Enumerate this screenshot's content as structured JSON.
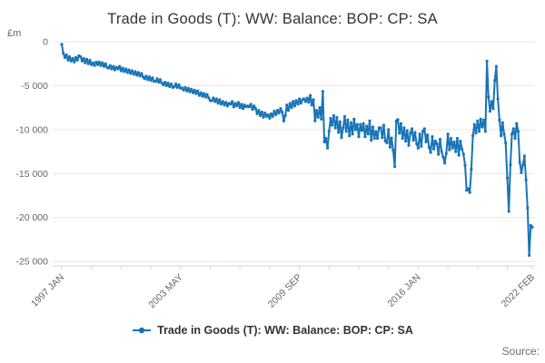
{
  "chart": {
    "title": "Trade in Goods (T): WW: Balance: BOP: CP: SA",
    "unit_label": "£m",
    "source_label": "Source:",
    "legend": {
      "series_label": "Trade in Goods (T): WW: Balance: BOP: CP: SA"
    }
  },
  "chart_data": {
    "type": "line",
    "title": "Trade in Goods (T): WW: Balance: BOP: CP: SA",
    "xlabel": "",
    "ylabel": "£m",
    "frequency": "monthly",
    "x_start_label": "1997 JAN",
    "x_end_label": "2022 FEB",
    "ylim": [
      -25500,
      0
    ],
    "grid": true,
    "legend_position": "bottom",
    "y_ticks": [
      {
        "value": 0,
        "label": "0"
      },
      {
        "value": -5000,
        "label": "-5 000"
      },
      {
        "value": -10000,
        "label": "-10 000"
      },
      {
        "value": -15000,
        "label": "-15 000"
      },
      {
        "value": -20000,
        "label": "-20 000"
      },
      {
        "value": -25000,
        "label": "-25 000"
      }
    ],
    "x_minor_tick_indices": [
      0,
      19,
      38,
      57,
      76,
      95,
      114,
      133,
      152,
      171,
      190,
      209,
      228,
      247,
      266,
      285,
      301
    ],
    "x_tick_labels": [
      {
        "index": 0,
        "label": "1997 JAN"
      },
      {
        "index": 76,
        "label": "2003 MAY"
      },
      {
        "index": 152,
        "label": "2009 SEP"
      },
      {
        "index": 228,
        "label": "2016 JAN"
      },
      {
        "index": 301,
        "label": "2022 FEB"
      }
    ],
    "colors": {
      "line": "#1774b6",
      "grid": "#e6e6e6",
      "axis": "#ccd6eb",
      "tick_label": "#666666",
      "title_text": "#333333",
      "legend_text": "#333333",
      "source_text": "#6e6e6e"
    },
    "series": [
      {
        "name": "Trade in Goods (T): WW: Balance: BOP: CP: SA",
        "color": "#1774b6",
        "values": [
          -300,
          -1300,
          -1800,
          -1500,
          -2100,
          -1700,
          -2200,
          -1900,
          -2300,
          -1800,
          -2100,
          -1600,
          -1700,
          -2200,
          -1900,
          -2400,
          -2000,
          -2500,
          -2100,
          -2600,
          -2400,
          -2700,
          -2300,
          -2600,
          -2300,
          -2700,
          -2400,
          -2800,
          -2500,
          -2900,
          -3000,
          -2700,
          -3100,
          -2800,
          -3200,
          -2900,
          -3100,
          -2800,
          -3300,
          -3000,
          -3400,
          -3100,
          -3500,
          -3200,
          -3600,
          -3300,
          -3700,
          -3400,
          -3800,
          -3500,
          -3900,
          -3600,
          -4000,
          -4200,
          -3900,
          -4300,
          -4000,
          -4400,
          -4100,
          -4500,
          -4500,
          -4200,
          -4600,
          -4300,
          -4700,
          -4900,
          -4600,
          -5000,
          -4700,
          -5100,
          -4800,
          -5200,
          -5100,
          -4800,
          -5200,
          -4900,
          -5300,
          -5250,
          -5500,
          -5200,
          -5600,
          -5300,
          -5700,
          -5400,
          -5800,
          -5500,
          -5900,
          -5600,
          -6100,
          -5800,
          -6200,
          -5900,
          -6300,
          -6000,
          -6400,
          -6700,
          -6700,
          -6400,
          -6800,
          -6500,
          -7000,
          -6600,
          -7100,
          -6800,
          -7200,
          -6900,
          -7300,
          -7000,
          -7100,
          -6800,
          -7400,
          -7000,
          -7300,
          -6900,
          -7500,
          -7100,
          -7600,
          -7200,
          -7400,
          -7300,
          -7400,
          -7100,
          -7700,
          -7300,
          -7600,
          -8200,
          -7800,
          -8400,
          -8000,
          -8600,
          -8100,
          -8500,
          -8300,
          -8700,
          -8200,
          -8500,
          -7900,
          -8300,
          -7800,
          -8100,
          -7600,
          -8000,
          -9000,
          -8400,
          -7200,
          -7800,
          -7000,
          -7500,
          -6800,
          -7300,
          -6700,
          -7100,
          -6500,
          -7000,
          -6600,
          -6500,
          -6800,
          -6400,
          -6900,
          -6100,
          -7200,
          -6600,
          -9000,
          -7800,
          -8600,
          -7500,
          -8800,
          -5650,
          -11400,
          -11000,
          -12100,
          -10200,
          -8700,
          -9500,
          -8400,
          -9800,
          -8600,
          -10300,
          -9100,
          -10900,
          -9800,
          -8500,
          -10200,
          -8900,
          -10700,
          -9200,
          -10500,
          -8800,
          -10000,
          -9400,
          -10800,
          -9400,
          -10100,
          -9300,
          -10800,
          -9600,
          -10500,
          -9000,
          -11200,
          -9700,
          -11000,
          -10200,
          -11000,
          -9800,
          -9800,
          -10900,
          -9500,
          -11300,
          -11500,
          -10000,
          -12000,
          -10950,
          -12300,
          -14200,
          -9000,
          -8850,
          -10400,
          -9300,
          -11000,
          -9800,
          -11300,
          -10100,
          -11800,
          -10400,
          -9900,
          -11200,
          -10300,
          -11600,
          -12100,
          -10500,
          -11900,
          -10200,
          -9900,
          -11400,
          -10600,
          -12000,
          -12600,
          -10800,
          -12200,
          -11300,
          -11600,
          -12800,
          -11100,
          -12500,
          -13100,
          -13800,
          -12700,
          -10500,
          -12300,
          -11000,
          -12100,
          -11400,
          -12500,
          -11000,
          -12900,
          -11300,
          -12200,
          -12800,
          -14050,
          -16900,
          -16700,
          -17150,
          -14500,
          -10700,
          -9400,
          -10400,
          -9000,
          -10200,
          -8800,
          -9700,
          -8900,
          -10200,
          -2200,
          -6300,
          -7900,
          -6800,
          -7600,
          -4400,
          -2800,
          -6500,
          -8900,
          -10700,
          -9200,
          -10500,
          -11500,
          -15500,
          -19300,
          -14000,
          -10500,
          -9900,
          -11000,
          -9300,
          -10200,
          -13700,
          -14900,
          -14000,
          -13000,
          -15700,
          -18900,
          -24300,
          -20900,
          -21100
        ]
      }
    ]
  }
}
